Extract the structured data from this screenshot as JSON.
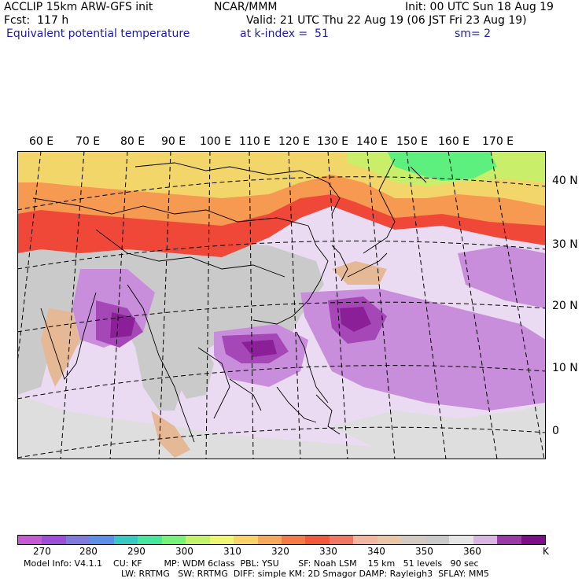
{
  "header": {
    "model": "ACCLIP 15km ARW-GFS init",
    "org": "NCAR/MMM",
    "init": "Init: 00 UTC Sun 18 Aug 19",
    "fcst": "Fcst:  117 h",
    "valid": "Valid: 21 UTC Thu 22 Aug 19 (06 JST Fri 23 Aug 19)",
    "field": "Equivalent potential temperature",
    "level": "at k-index =  51",
    "smooth": "sm= 2"
  },
  "map": {
    "lon_labels": [
      "60 E",
      "70 E",
      "80 E",
      "90 E",
      "100 E",
      "110 E",
      "120 E",
      "130 E",
      "140 E",
      "150 E",
      "160 E",
      "170 E"
    ],
    "lat_labels": [
      "40 N",
      "30 N",
      "20 N",
      "10 N",
      "0"
    ],
    "region_colors": {
      "ocean_lavender": "#ebdbf2",
      "purple_light": "#c98edb",
      "purple_mid": "#a647b8",
      "purple_dark": "#8a1f98",
      "grey_light": "#dedede",
      "grey_mid": "#cacaca",
      "tan": "#e6b996",
      "red": "#f04838",
      "orange": "#f59a50",
      "yellow": "#f2d66a",
      "lime": "#c9ef6a",
      "green": "#5ef07e"
    }
  },
  "colorbar": {
    "colors": [
      "#c65ad3",
      "#9d4fd8",
      "#8179dc",
      "#5c8fe6",
      "#3ac8c3",
      "#4ae59c",
      "#78f27a",
      "#c2f36a",
      "#f0f574",
      "#f8d36a",
      "#f6a85c",
      "#f17c48",
      "#ef5a3c",
      "#ef7862",
      "#f4b6a0",
      "#e9c6a6",
      "#d2cbc2",
      "#c9c9c9",
      "#e5e5e5",
      "#d9b6e2",
      "#9a3aa7",
      "#7a0f86"
    ],
    "labels": [
      "270",
      "280",
      "290",
      "300",
      "310",
      "320",
      "330",
      "340",
      "350",
      "360"
    ],
    "unit": "K"
  },
  "footer": {
    "line1": "Model Info: V4.1.1    CU: KF        MP: WDM 6class  PBL: YSU       SF: Noah LSM    15 km   51 levels   90 sec",
    "line2": "LW: RRTMG   SW: RRTMG  DIFF: simple KM: 2D Smagor DAMP: Rayleigh3  SFLAY: MM5"
  }
}
